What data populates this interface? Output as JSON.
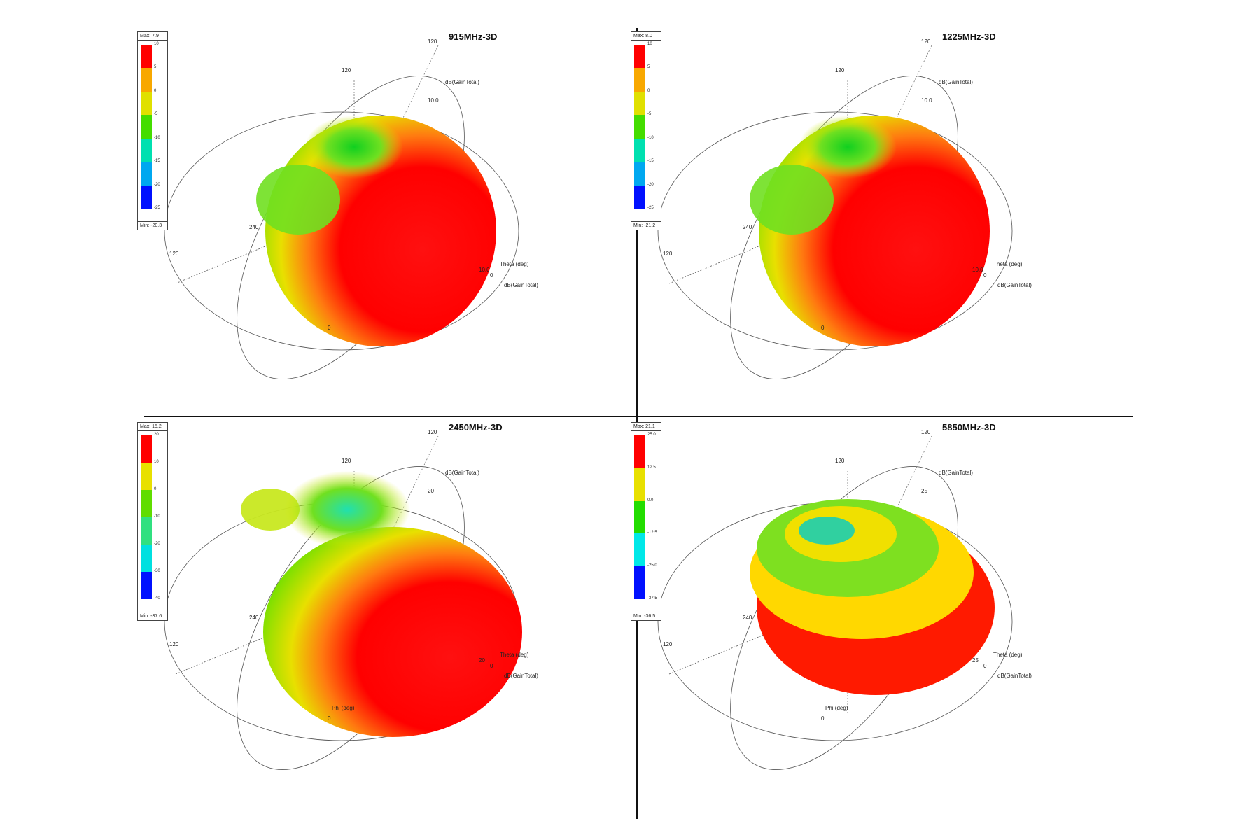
{
  "panels": [
    {
      "title": "915MHz-3D",
      "legend": {
        "max": "Max: 7.9",
        "min": "Min: -20.3",
        "ticks": [
          "10",
          "5",
          "0",
          "-5",
          "-10",
          "-15",
          "-20",
          "-25"
        ],
        "colors": [
          "#ff0000",
          "#f8a800",
          "#e0e000",
          "#44dd00",
          "#00e0b0",
          "#00a8f0",
          "#0010ff"
        ]
      },
      "labels": {
        "top_120": "120",
        "mid_120": "120",
        "peak": "10.0",
        "zero_a": "0",
        "label_240": "240",
        "left_120": "120",
        "theta": "Theta (deg)",
        "peak_b": "10.0",
        "zero_b": "0",
        "gain_top": "dB(GainTotal)",
        "gain_bot": "dB(GainTotal)",
        "phi": ""
      }
    },
    {
      "title": "1225MHz-3D",
      "legend": {
        "max": "Max: 8.0",
        "min": "Min: -21.2",
        "ticks": [
          "10",
          "5",
          "0",
          "-5",
          "-10",
          "-15",
          "-20",
          "-25"
        ],
        "colors": [
          "#ff0000",
          "#f8a800",
          "#e0e000",
          "#44dd00",
          "#00e0b0",
          "#00a8f0",
          "#0010ff"
        ]
      },
      "labels": {
        "top_120": "120",
        "mid_120": "120",
        "peak": "10.0",
        "zero_a": "0",
        "label_240": "240",
        "left_120": "120",
        "theta": "Theta (deg)",
        "peak_b": "10.0",
        "zero_b": "0",
        "gain_top": "dB(GainTotal)",
        "gain_bot": "dB(GainTotal)",
        "phi": ""
      }
    },
    {
      "title": "2450MHz-3D",
      "legend": {
        "max": "Max: 15.2",
        "min": "Min: -37.6",
        "ticks": [
          "20",
          "10",
          "0",
          "-10",
          "-20",
          "-30",
          "-40"
        ],
        "colors": [
          "#ff0000",
          "#e8e000",
          "#60dd00",
          "#30e080",
          "#00e0e0",
          "#0010ff"
        ]
      },
      "labels": {
        "top_120": "120",
        "mid_120": "120",
        "peak": "20",
        "zero_a": "0",
        "label_240": "240",
        "left_120": "120",
        "theta": "Theta (deg)",
        "peak_b": "20",
        "zero_b": "0",
        "gain_top": "dB(GainTotal)",
        "gain_bot": "dB(GainTotal)",
        "phi": "Phi (deg)"
      }
    },
    {
      "title": "5850MHz-3D",
      "legend": {
        "max": "Max: 21.1",
        "min": "Min: -36.5",
        "ticks": [
          "25.0",
          "12.5",
          "0.0",
          "-12.5",
          "-25.0",
          "-37.5"
        ],
        "colors": [
          "#ff0000",
          "#e8e000",
          "#22dd00",
          "#00e8e8",
          "#0010ff"
        ]
      },
      "labels": {
        "top_120": "120",
        "mid_120": "120",
        "peak": "25",
        "zero_a": "0",
        "label_240": "240",
        "left_120": "120",
        "theta": "Theta (deg)",
        "peak_b": "25",
        "zero_b": "0",
        "gain_top": "dB(GainTotal)",
        "gain_bot": "dB(GainTotal)",
        "phi": "Phi (deg)"
      }
    }
  ]
}
